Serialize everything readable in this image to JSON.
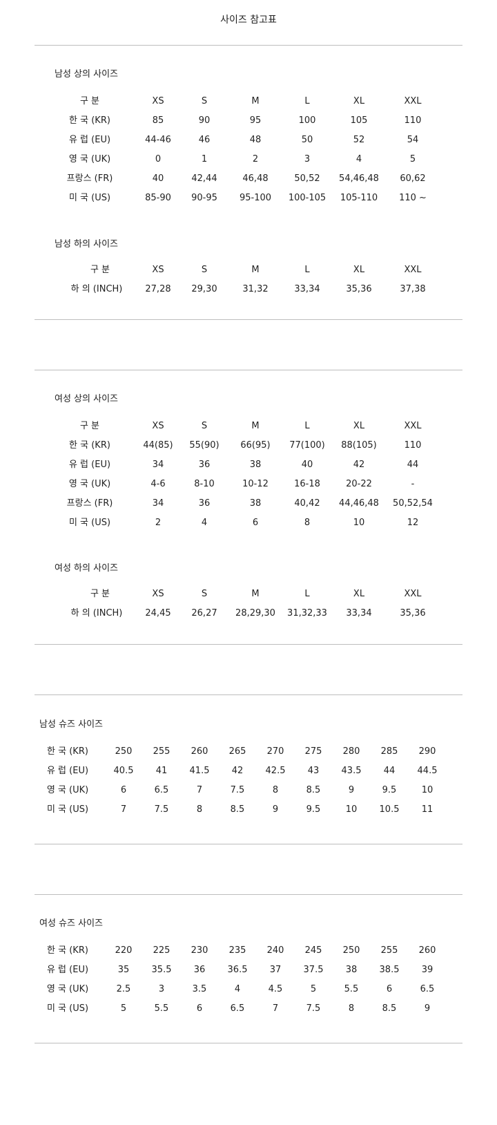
{
  "title": "사이즈 참고표",
  "sections": [
    {
      "id": "men-top",
      "title": "남성 상의 사이즈",
      "header": [
        "구 분",
        "XS",
        "S",
        "M",
        "L",
        "XL",
        "XXL"
      ],
      "rows": [
        [
          "한 국 (KR)",
          "85",
          "90",
          "95",
          "100",
          "105",
          "110"
        ],
        [
          "유 럽 (EU)",
          "44-46",
          "46",
          "48",
          "50",
          "52",
          "54"
        ],
        [
          "영 국 (UK)",
          "0",
          "1",
          "2",
          "3",
          "4",
          "5"
        ],
        [
          "프랑스 (FR)",
          "40",
          "42,44",
          "46,48",
          "50,52",
          "54,46,48",
          "60,62"
        ],
        [
          "미 국 (US)",
          "85-90",
          "90-95",
          "95-100",
          "100-105",
          "105-110",
          "110 ~"
        ]
      ]
    },
    {
      "id": "men-bottom",
      "title": "남성 하의 사이즈",
      "header": [
        "구 분",
        "XS",
        "S",
        "M",
        "L",
        "XL",
        "XXL"
      ],
      "rows": [
        [
          "하 의 (INCH)",
          "27,28",
          "29,30",
          "31,32",
          "33,34",
          "35,36",
          "37,38"
        ]
      ]
    },
    {
      "id": "women-top",
      "title": "여성 상의 사이즈",
      "header": [
        "구 분",
        "XS",
        "S",
        "M",
        "L",
        "XL",
        "XXL"
      ],
      "rows": [
        [
          "한 국 (KR)",
          "44(85)",
          "55(90)",
          "66(95)",
          "77(100)",
          "88(105)",
          "110"
        ],
        [
          "유 럽 (EU)",
          "34",
          "36",
          "38",
          "40",
          "42",
          "44"
        ],
        [
          "영 국 (UK)",
          "4-6",
          "8-10",
          "10-12",
          "16-18",
          "20-22",
          "-"
        ],
        [
          "프랑스 (FR)",
          "34",
          "36",
          "38",
          "40,42",
          "44,46,48",
          "50,52,54"
        ],
        [
          "미 국 (US)",
          "2",
          "4",
          "6",
          "8",
          "10",
          "12"
        ]
      ]
    },
    {
      "id": "women-bottom",
      "title": "여성 하의 사이즈",
      "header": [
        "구 분",
        "XS",
        "S",
        "M",
        "L",
        "XL",
        "XXL"
      ],
      "rows": [
        [
          "하 의 (INCH)",
          "24,45",
          "26,27",
          "28,29,30",
          "31,32,33",
          "33,34",
          "35,36"
        ]
      ]
    },
    {
      "id": "men-shoes",
      "title": "남성 슈즈 사이즈",
      "header": null,
      "rows": [
        [
          "한 국 (KR)",
          "250",
          "255",
          "260",
          "265",
          "270",
          "275",
          "280",
          "285",
          "290"
        ],
        [
          "유 럽 (EU)",
          "40.5",
          "41",
          "41.5",
          "42",
          "42.5",
          "43",
          "43.5",
          "44",
          "44.5"
        ],
        [
          "영 국 (UK)",
          "6",
          "6.5",
          "7",
          "7.5",
          "8",
          "8.5",
          "9",
          "9.5",
          "10"
        ],
        [
          "미 국 (US)",
          "7",
          "7.5",
          "8",
          "8.5",
          "9",
          "9.5",
          "10",
          "10.5",
          "11"
        ]
      ]
    },
    {
      "id": "women-shoes",
      "title": "여성 슈즈 사이즈",
      "header": null,
      "rows": [
        [
          "한 국 (KR)",
          "220",
          "225",
          "230",
          "235",
          "240",
          "245",
          "250",
          "255",
          "260"
        ],
        [
          "유 럽 (EU)",
          "35",
          "35.5",
          "36",
          "36.5",
          "37",
          "37.5",
          "38",
          "38.5",
          "39"
        ],
        [
          "영 국 (UK)",
          "2.5",
          "3",
          "3.5",
          "4",
          "4.5",
          "5",
          "5.5",
          "6",
          "6.5"
        ],
        [
          "미 국 (US)",
          "5",
          "5.5",
          "6",
          "6.5",
          "7",
          "7.5",
          "8",
          "8.5",
          "9"
        ]
      ]
    }
  ]
}
